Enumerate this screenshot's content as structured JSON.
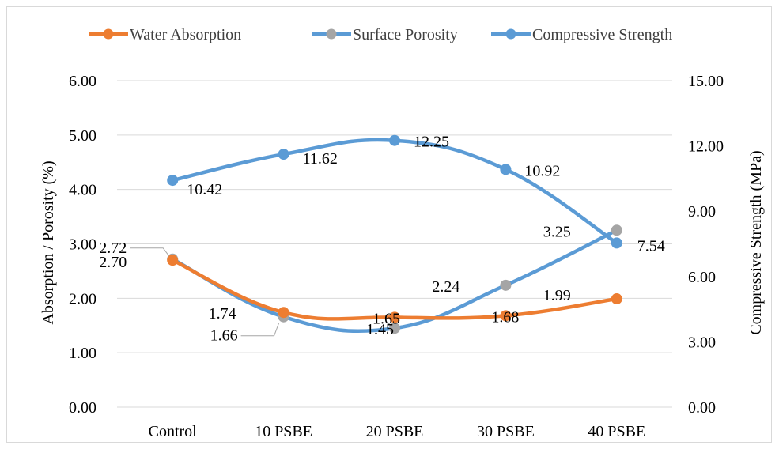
{
  "chart_data": {
    "type": "line",
    "categories": [
      "Control",
      "10 PSBE",
      "20 PSBE",
      "30 PSBE",
      "40 PSBE"
    ],
    "series": [
      {
        "name": "Water Absorption",
        "axis": "left",
        "color": "#ED7D31",
        "values": [
          2.7,
          1.74,
          1.65,
          1.68,
          1.99
        ],
        "labels": [
          "2.70",
          "1.74",
          "1.65",
          "1.68",
          "1.99"
        ]
      },
      {
        "name": "Surface Porosity",
        "axis": "left",
        "color": "#5B9BD5",
        "marker_color": "#A5A5A5",
        "values": [
          2.72,
          1.66,
          1.45,
          2.24,
          3.25
        ],
        "labels": [
          "2.72",
          "1.66",
          "1.45",
          "2.24",
          "3.25"
        ]
      },
      {
        "name": "Compressive Strength",
        "axis": "right",
        "color": "#5B9BD5",
        "values": [
          10.42,
          11.62,
          12.25,
          10.92,
          7.54
        ],
        "labels": [
          "10.42",
          "11.62",
          "12.25",
          "10.92",
          "7.54"
        ]
      }
    ],
    "ylabel": "Absorption / Porosity (%)",
    "y2label": "Compressive Strength (MPa)",
    "ylim": [
      0,
      6
    ],
    "y2lim": [
      0,
      15
    ],
    "yticks": [
      "0.00",
      "1.00",
      "2.00",
      "3.00",
      "4.00",
      "5.00",
      "6.00"
    ],
    "y2ticks": [
      "0.00",
      "3.00",
      "6.00",
      "9.00",
      "12.00",
      "15.00"
    ],
    "grid": true,
    "legend_position": "top",
    "smooth": true
  }
}
